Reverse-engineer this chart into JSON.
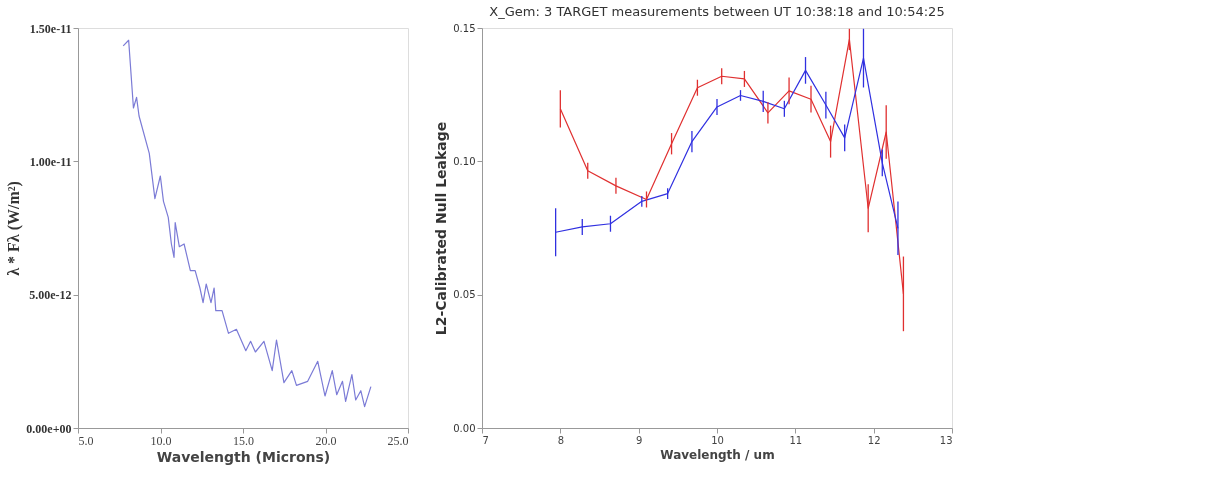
{
  "chart_data": [
    {
      "type": "line",
      "xlabel": "Wavelength (Microns)",
      "ylabel": "λ * Fλ (W/m²)",
      "xlim": [
        5,
        25
      ],
      "ylim": [
        0,
        1.5e-11
      ],
      "xticks": [
        {
          "value": 5,
          "label": "5.0"
        },
        {
          "value": 10,
          "label": "10.0"
        },
        {
          "value": 15,
          "label": "15.0"
        },
        {
          "value": 20,
          "label": "20.0"
        },
        {
          "value": 25,
          "label": "25.0"
        }
      ],
      "yticks": [
        {
          "value": 0,
          "label": "0.00e+00"
        },
        {
          "value": 5e-12,
          "label": "5.00e-12"
        },
        {
          "value": 1e-11,
          "label": "1.00e-11"
        },
        {
          "value": 1.5e-11,
          "label": "1.50e-11"
        }
      ],
      "grid": false,
      "legend": false,
      "line_style": "solid",
      "series": [
        {
          "color": "#7b7bd6",
          "x": [
            7.74,
            8.07,
            8.36,
            8.55,
            8.7,
            9.32,
            9.66,
            9.99,
            10.18,
            10.47,
            10.66,
            10.82,
            10.89,
            11.14,
            11.43,
            11.81,
            12.1,
            12.39,
            12.58,
            12.77,
            13.06,
            13.25,
            13.35,
            13.73,
            14.12,
            14.6,
            15.17,
            15.46,
            15.75,
            16.27,
            16.77,
            17.03,
            17.48,
            17.96,
            18.24,
            18.92,
            19.53,
            19.97,
            20.41,
            20.68,
            21.03,
            21.22,
            21.6,
            21.83,
            22.14,
            22.37,
            22.75
          ],
          "values": [
            1.433e-11,
            1.454e-11,
            1.2e-11,
            1.24e-11,
            1.17e-11,
            1.03e-11,
            8.6e-12,
            9.45e-12,
            8.5e-12,
            7.9e-12,
            6.9e-12,
            6.4e-12,
            7.7e-12,
            6.8e-12,
            6.9e-12,
            5.9e-12,
            5.9e-12,
            5.25e-12,
            4.7e-12,
            5.4e-12,
            4.7e-12,
            5.25e-12,
            4.4e-12,
            4.4e-12,
            3.55e-12,
            3.7e-12,
            2.9e-12,
            3.25e-12,
            2.85e-12,
            3.25e-12,
            2.15e-12,
            3.3e-12,
            1.7e-12,
            2.15e-12,
            1.6e-12,
            1.75e-12,
            2.5e-12,
            1.2e-12,
            2.15e-12,
            1.25e-12,
            1.75e-12,
            1e-12,
            2e-12,
            1.05e-12,
            1.4e-12,
            8e-13,
            1.55e-12
          ]
        }
      ]
    },
    {
      "type": "line",
      "title": "X_Gem: 3 TARGET measurements between UT 10:38:18 and 10:54:25",
      "xlabel": "Wavelength / um",
      "ylabel": "L2-Calibrated Null Leakage",
      "xlim": [
        7,
        13
      ],
      "ylim": [
        0,
        0.15
      ],
      "xticks": [
        7,
        8,
        9,
        10,
        11,
        12,
        13
      ],
      "line_style": "solid",
      "yticks": [
        {
          "value": 0,
          "label": "0.00"
        },
        0.05,
        {
          "value": 0.1,
          "label": "0.10"
        },
        0.15
      ],
      "grid": false,
      "legend": false,
      "series": [
        {
          "color": "#e03030",
          "x": [
            8.0,
            8.35,
            8.71,
            9.1,
            9.42,
            9.75,
            10.06,
            10.35,
            10.65,
            10.92,
            11.2,
            11.45,
            11.69,
            11.93,
            12.16,
            12.38
          ],
          "values": [
            0.1197,
            0.0965,
            0.0908,
            0.0857,
            0.1066,
            0.1276,
            0.1319,
            0.1309,
            0.1182,
            0.1264,
            0.1233,
            0.1074,
            0.1457,
            0.0824,
            0.111,
            0.0503
          ],
          "errors": [
            0.007,
            0.003,
            0.003,
            0.003,
            0.004,
            0.003,
            0.003,
            0.003,
            0.004,
            0.005,
            0.005,
            0.006,
            0.004,
            0.009,
            0.01,
            0.014
          ]
        },
        {
          "color": "#3030e0",
          "x": [
            7.94,
            8.28,
            8.64,
            9.04,
            9.37,
            9.68,
            10.0,
            10.3,
            10.59,
            10.86,
            11.13,
            11.39,
            11.63,
            11.87,
            12.11,
            12.31
          ],
          "values": [
            0.0734,
            0.0754,
            0.0766,
            0.085,
            0.0879,
            0.1074,
            0.1204,
            0.1247,
            0.1225,
            0.1197,
            0.1341,
            0.1211,
            0.1088,
            0.1387,
            0.0994,
            0.0749
          ],
          "errors": [
            0.009,
            0.003,
            0.003,
            0.002,
            0.002,
            0.004,
            0.003,
            0.002,
            0.004,
            0.003,
            0.005,
            0.005,
            0.005,
            0.011,
            0.005,
            0.01
          ]
        }
      ]
    }
  ]
}
